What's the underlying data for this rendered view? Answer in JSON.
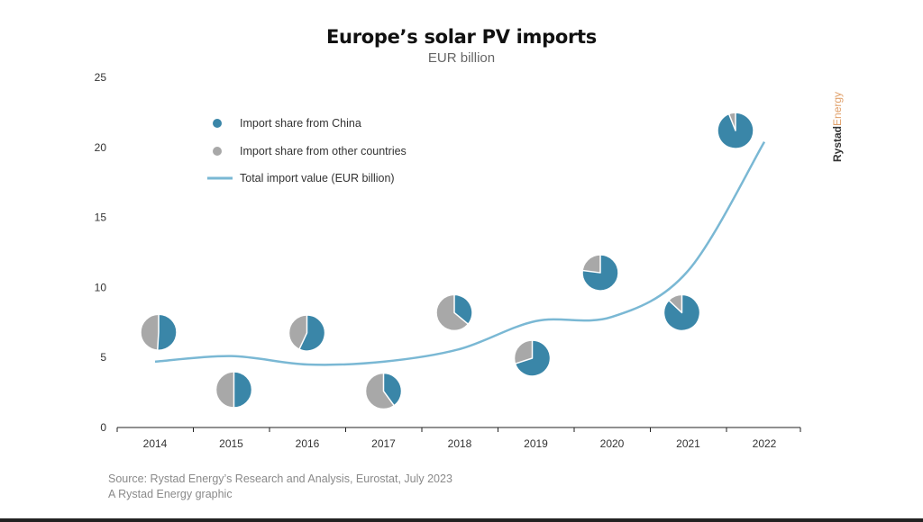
{
  "chart_data": {
    "type": "line+pie",
    "title": "Europe’s solar PV imports",
    "subtitle": "EUR billion",
    "xlabel": "",
    "ylabel": "",
    "ylim": [
      0,
      25
    ],
    "yticks": [
      0,
      5,
      10,
      15,
      20,
      25
    ],
    "categories": [
      "2014",
      "2015",
      "2016",
      "2017",
      "2018",
      "2019",
      "2020",
      "2021",
      "2022"
    ],
    "grid": false,
    "legend": {
      "placement": "top-left",
      "entries": [
        "Import share from China",
        "Import share from other countries",
        "Total import value (EUR billion)"
      ]
    },
    "series": [
      {
        "name": "Total import value (EUR billion)",
        "type": "line",
        "color": "#7ab8d4",
        "values": [
          4.7,
          5.1,
          4.5,
          4.7,
          5.6,
          7.6,
          7.9,
          11.2,
          20.4
        ]
      }
    ],
    "pies": {
      "colors": {
        "china": "#3a86a8",
        "other": "#a8a8a8"
      },
      "entries": [
        "Import share from China",
        "Import share from other countries"
      ],
      "china_share": [
        0.51,
        0.5,
        0.57,
        0.4,
        0.36,
        0.7,
        0.77,
        0.87,
        0.94
      ],
      "y_position_value": [
        6.8,
        2.7,
        6.75,
        2.6,
        8.2,
        4.95,
        11.05,
        8.2,
        21.2
      ]
    }
  },
  "branding": {
    "logo_text_1": "Rystad",
    "logo_text_2": "Energy",
    "logo_color_1": "#333333",
    "logo_color_2": "#e0a06a"
  },
  "footer": {
    "source": "Source: Rystad Energy’s Research and Analysis, Eurostat, July 2023",
    "credit": "A Rystad Energy graphic"
  }
}
